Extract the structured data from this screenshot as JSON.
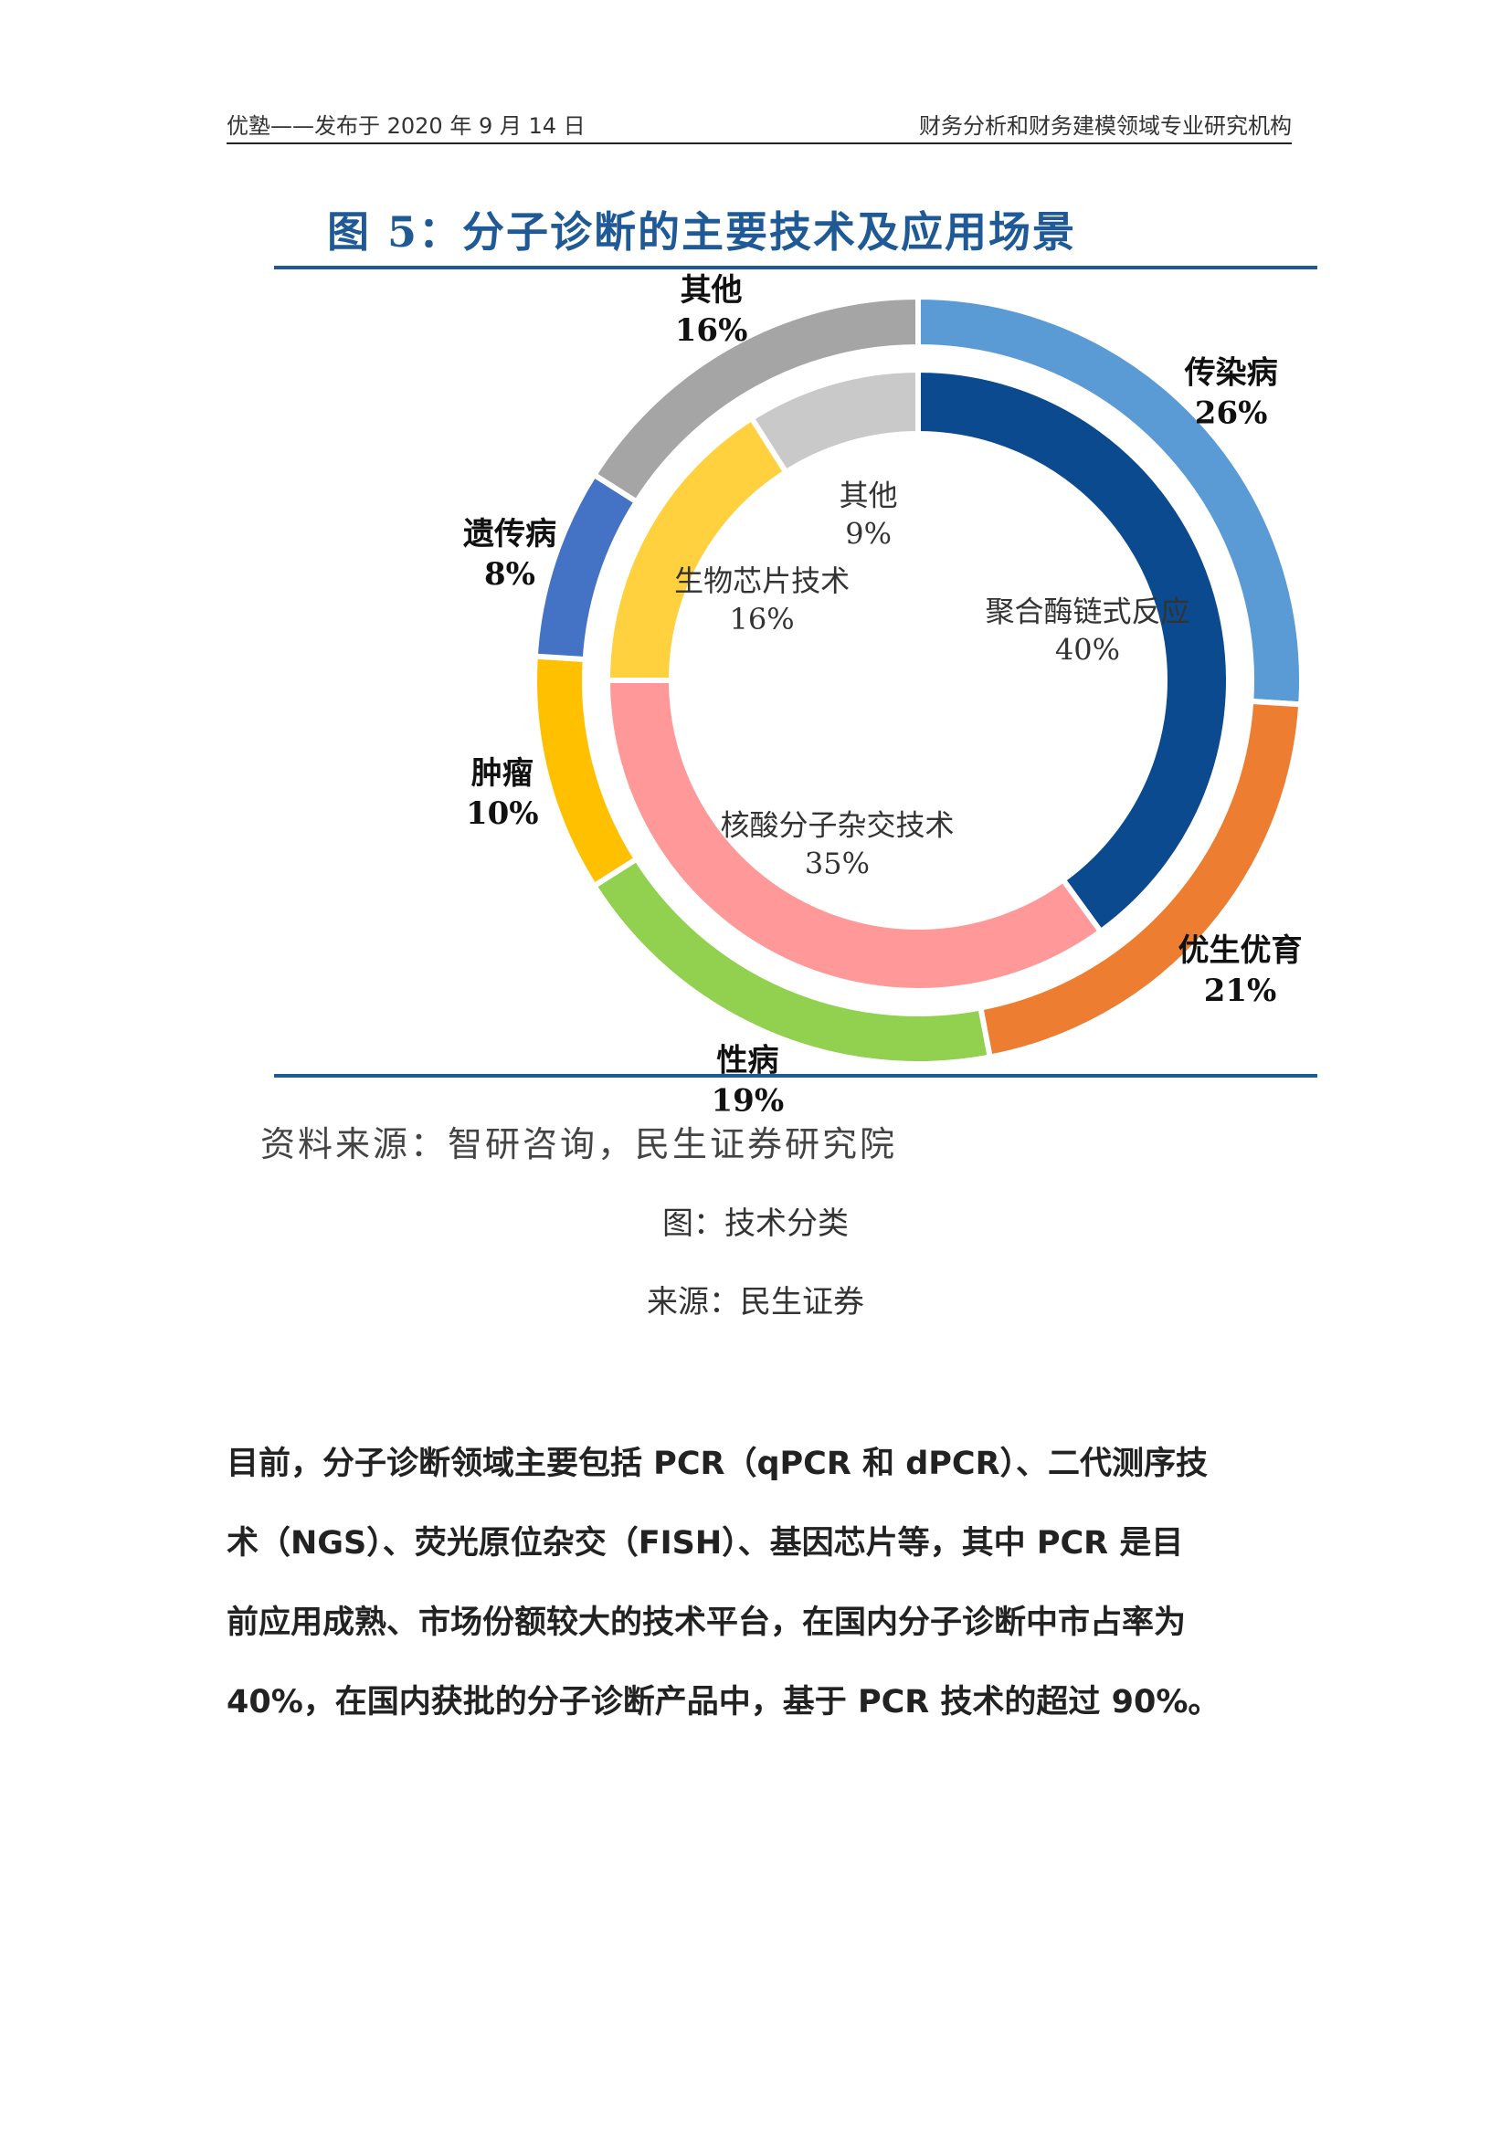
{
  "header": {
    "left": "优塾——发布于 2020 年 9 月 14 日",
    "right": "财务分析和财务建模领域专业研究机构"
  },
  "figure": {
    "title": "图 5：分子诊断的主要技术及应用场景",
    "source": "资料来源：智研咨询，民生证券研究院"
  },
  "caption": {
    "figure": "图：技术分类",
    "source": "来源：民生证券"
  },
  "body": {
    "paragraph": "目前，分子诊断领域主要包括 PCR（qPCR 和 dPCR）、二代测序技术（NGS）、荧光原位杂交（FISH）、基因芯片等，其中 PCR 是目前应用成熟、市场份额较大的技术平台，在国内分子诊断中市占率为 40%，在国内获批的分子诊断产品中，基于 PCR 技术的超过 90%。",
    "lines": [
      "目前，分子诊断领域主要包括 PCR（qPCR 和 dPCR）、二代测序技",
      "术（NGS）、荧光原位杂交（FISH）、基因芯片等，其中 PCR 是目",
      "前应用成熟、市场份额较大的技术平台，在国内分子诊断中市占率为",
      "40%，在国内获批的分子诊断产品中，基于 PCR 技术的超过 90%。"
    ]
  },
  "chart_data": {
    "type": "pie",
    "subtype": "nested-donut",
    "title": "图 5：分子诊断的主要技术及应用场景",
    "rings": [
      {
        "ring": "outer",
        "slices": [
          {
            "label": "传染病",
            "value": 26,
            "display": "26%",
            "color": "#5b9bd5"
          },
          {
            "label": "优生优育",
            "value": 21,
            "display": "21%",
            "color": "#ed7d31"
          },
          {
            "label": "性病",
            "value": 19,
            "display": "19%",
            "color": "#92d050"
          },
          {
            "label": "肿瘤",
            "value": 10,
            "display": "10%",
            "color": "#ffc000"
          },
          {
            "label": "遗传病",
            "value": 8,
            "display": "8%",
            "color": "#4472c4"
          },
          {
            "label": "其他",
            "value": 16,
            "display": "16%",
            "color": "#a5a5a5"
          }
        ]
      },
      {
        "ring": "inner",
        "slices": [
          {
            "label": "聚合酶链式反应",
            "value": 40,
            "display": "40%",
            "color": "#0b4a8f"
          },
          {
            "label": "核酸分子杂交技术",
            "value": 35,
            "display": "35%",
            "color": "#ff9999"
          },
          {
            "label": "生物芯片技术",
            "value": 16,
            "display": "16%",
            "color": "#ffd13f"
          },
          {
            "label": "其他",
            "value": 9,
            "display": "9%",
            "color": "#c9c9c9"
          }
        ]
      }
    ]
  }
}
